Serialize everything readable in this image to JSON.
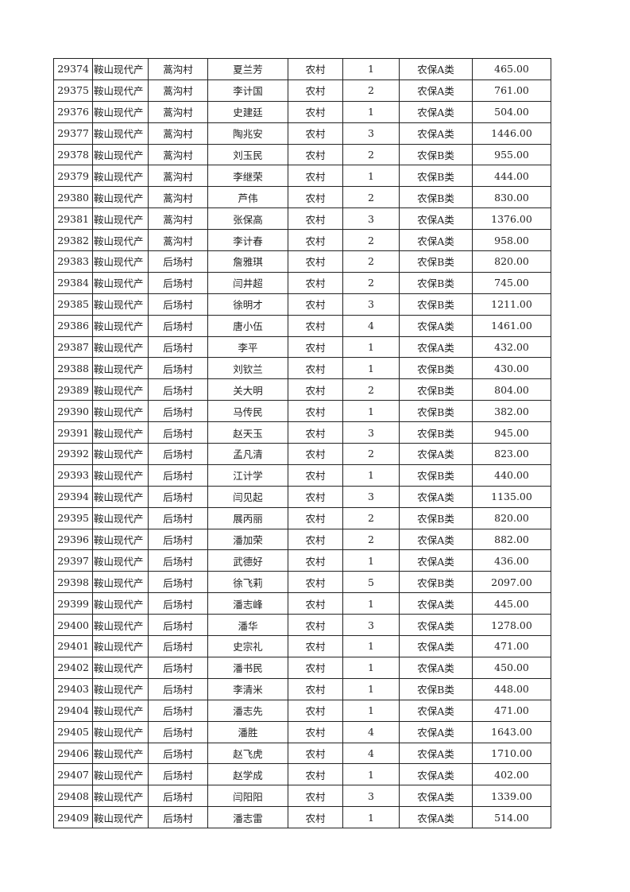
{
  "rows": [
    [
      "29374",
      "鞍山现代产",
      "蒿沟村",
      "夏兰芳",
      "农村",
      "1",
      "农保A类",
      "465.00"
    ],
    [
      "29375",
      "鞍山现代产",
      "蒿沟村",
      "李计国",
      "农村",
      "2",
      "农保A类",
      "761.00"
    ],
    [
      "29376",
      "鞍山现代产",
      "蒿沟村",
      "史建廷",
      "农村",
      "1",
      "农保A类",
      "504.00"
    ],
    [
      "29377",
      "鞍山现代产",
      "蒿沟村",
      "陶兆安",
      "农村",
      "3",
      "农保A类",
      "1446.00"
    ],
    [
      "29378",
      "鞍山现代产",
      "蒿沟村",
      "刘玉民",
      "农村",
      "2",
      "农保B类",
      "955.00"
    ],
    [
      "29379",
      "鞍山现代产",
      "蒿沟村",
      "李继荣",
      "农村",
      "1",
      "农保B类",
      "444.00"
    ],
    [
      "29380",
      "鞍山现代产",
      "蒿沟村",
      "芦伟",
      "农村",
      "2",
      "农保B类",
      "830.00"
    ],
    [
      "29381",
      "鞍山现代产",
      "蒿沟村",
      "张保高",
      "农村",
      "3",
      "农保A类",
      "1376.00"
    ],
    [
      "29382",
      "鞍山现代产",
      "蒿沟村",
      "李计春",
      "农村",
      "2",
      "农保A类",
      "958.00"
    ],
    [
      "29383",
      "鞍山现代产",
      "后场村",
      "詹雅琪",
      "农村",
      "2",
      "农保B类",
      "820.00"
    ],
    [
      "29384",
      "鞍山现代产",
      "后场村",
      "闫井超",
      "农村",
      "2",
      "农保B类",
      "745.00"
    ],
    [
      "29385",
      "鞍山现代产",
      "后场村",
      "徐明才",
      "农村",
      "3",
      "农保B类",
      "1211.00"
    ],
    [
      "29386",
      "鞍山现代产",
      "后场村",
      "唐小伍",
      "农村",
      "4",
      "农保A类",
      "1461.00"
    ],
    [
      "29387",
      "鞍山现代产",
      "后场村",
      "李平",
      "农村",
      "1",
      "农保A类",
      "432.00"
    ],
    [
      "29388",
      "鞍山现代产",
      "后场村",
      "刘钦兰",
      "农村",
      "1",
      "农保B类",
      "430.00"
    ],
    [
      "29389",
      "鞍山现代产",
      "后场村",
      "关大明",
      "农村",
      "2",
      "农保B类",
      "804.00"
    ],
    [
      "29390",
      "鞍山现代产",
      "后场村",
      "马传民",
      "农村",
      "1",
      "农保B类",
      "382.00"
    ],
    [
      "29391",
      "鞍山现代产",
      "后场村",
      "赵天玉",
      "农村",
      "3",
      "农保B类",
      "945.00"
    ],
    [
      "29392",
      "鞍山现代产",
      "后场村",
      "孟凡清",
      "农村",
      "2",
      "农保A类",
      "823.00"
    ],
    [
      "29393",
      "鞍山现代产",
      "后场村",
      "江计学",
      "农村",
      "1",
      "农保B类",
      "440.00"
    ],
    [
      "29394",
      "鞍山现代产",
      "后场村",
      "闫见起",
      "农村",
      "3",
      "农保A类",
      "1135.00"
    ],
    [
      "29395",
      "鞍山现代产",
      "后场村",
      "展丙丽",
      "农村",
      "2",
      "农保B类",
      "820.00"
    ],
    [
      "29396",
      "鞍山现代产",
      "后场村",
      "潘加荣",
      "农村",
      "2",
      "农保A类",
      "882.00"
    ],
    [
      "29397",
      "鞍山现代产",
      "后场村",
      "武德好",
      "农村",
      "1",
      "农保A类",
      "436.00"
    ],
    [
      "29398",
      "鞍山现代产",
      "后场村",
      "徐飞莉",
      "农村",
      "5",
      "农保B类",
      "2097.00"
    ],
    [
      "29399",
      "鞍山现代产",
      "后场村",
      "潘志峰",
      "农村",
      "1",
      "农保A类",
      "445.00"
    ],
    [
      "29400",
      "鞍山现代产",
      "后场村",
      "潘华",
      "农村",
      "3",
      "农保A类",
      "1278.00"
    ],
    [
      "29401",
      "鞍山现代产",
      "后场村",
      "史宗礼",
      "农村",
      "1",
      "农保A类",
      "471.00"
    ],
    [
      "29402",
      "鞍山现代产",
      "后场村",
      "潘书民",
      "农村",
      "1",
      "农保A类",
      "450.00"
    ],
    [
      "29403",
      "鞍山现代产",
      "后场村",
      "李清米",
      "农村",
      "1",
      "农保B类",
      "448.00"
    ],
    [
      "29404",
      "鞍山现代产",
      "后场村",
      "潘志先",
      "农村",
      "1",
      "农保A类",
      "471.00"
    ],
    [
      "29405",
      "鞍山现代产",
      "后场村",
      "潘胜",
      "农村",
      "4",
      "农保A类",
      "1643.00"
    ],
    [
      "29406",
      "鞍山现代产",
      "后场村",
      "赵飞虎",
      "农村",
      "4",
      "农保A类",
      "1710.00"
    ],
    [
      "29407",
      "鞍山现代产",
      "后场村",
      "赵学成",
      "农村",
      "1",
      "农保A类",
      "402.00"
    ],
    [
      "29408",
      "鞍山现代产",
      "后场村",
      "闫阳阳",
      "农村",
      "3",
      "农保A类",
      "1339.00"
    ],
    [
      "29409",
      "鞍山现代产",
      "后场村",
      "潘志雷",
      "农村",
      "1",
      "农保A类",
      "514.00"
    ]
  ]
}
